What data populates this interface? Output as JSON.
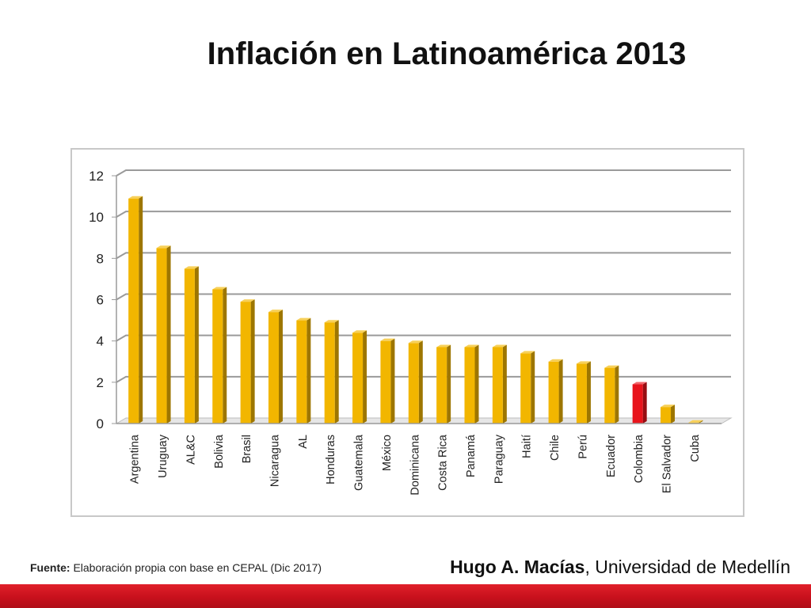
{
  "slide": {
    "title": "Inflación en Latinoamérica 2013",
    "source_label": "Fuente:",
    "source_text": " Elaboración propia con base en CEPAL (Dic 2017)",
    "author_name": "Hugo A. Macías",
    "author_affiliation": ", Universidad de Medellín",
    "footer_color": "#d0121e"
  },
  "chart_data": {
    "type": "bar",
    "title": "",
    "xlabel": "",
    "ylabel": "",
    "ylim": [
      0,
      12
    ],
    "yticks": [
      0,
      2,
      4,
      6,
      8,
      10,
      12
    ],
    "grid": true,
    "legend": "none",
    "categories": [
      "Argentina",
      "Uruguay",
      "AL&C",
      "Bolivia",
      "Brasil",
      "Nicaragua",
      "AL",
      "Honduras",
      "Guatemala",
      "México",
      "Dominicana",
      "Costa Rica",
      "Panamá",
      "Paraguay",
      "Haití",
      "Chile",
      "Perú",
      "Ecuador",
      "Colombia",
      "El Salvador",
      "Cuba"
    ],
    "values": [
      10.9,
      8.5,
      7.5,
      6.5,
      5.9,
      5.4,
      5.0,
      4.9,
      4.4,
      4.0,
      3.9,
      3.7,
      3.7,
      3.7,
      3.4,
      3.0,
      2.9,
      2.7,
      1.9,
      0.8,
      0.0
    ],
    "colors": {
      "default": "#f2b600",
      "highlight": "#e8141c"
    },
    "highlight_category": "Colombia"
  }
}
